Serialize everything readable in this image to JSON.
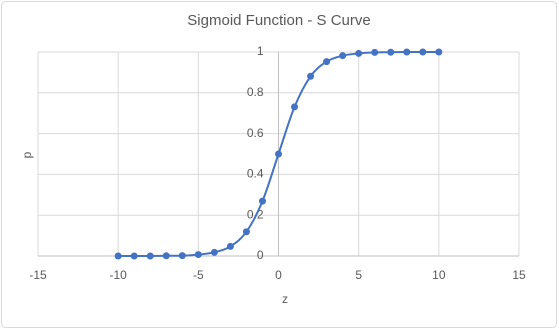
{
  "chart_data": {
    "type": "scatter",
    "title": "Sigmoid Function - S Curve",
    "x_label": "z",
    "y_label": "p",
    "x": [
      -10,
      -9,
      -8,
      -7,
      -6,
      -5,
      -4,
      -3,
      -2,
      -1,
      0,
      1,
      2,
      3,
      4,
      5,
      6,
      7,
      8,
      9,
      10
    ],
    "series": [
      {
        "color": "#4472c4",
        "values": [
          0,
          0,
          0,
          0.001,
          0.002,
          0.007,
          0.018,
          0.047,
          0.119,
          0.269,
          0.5,
          0.731,
          0.881,
          0.953,
          0.982,
          0.993,
          0.998,
          0.999,
          1,
          1,
          1
        ]
      }
    ],
    "xlim": [
      -15,
      15
    ],
    "xticks": [
      -15,
      -10,
      -5,
      0,
      5,
      10,
      15
    ],
    "ylim": [
      0,
      1
    ],
    "yticks": [
      0,
      0.2,
      0.4,
      0.6,
      0.8,
      1
    ],
    "grid": true,
    "smooth": true
  }
}
